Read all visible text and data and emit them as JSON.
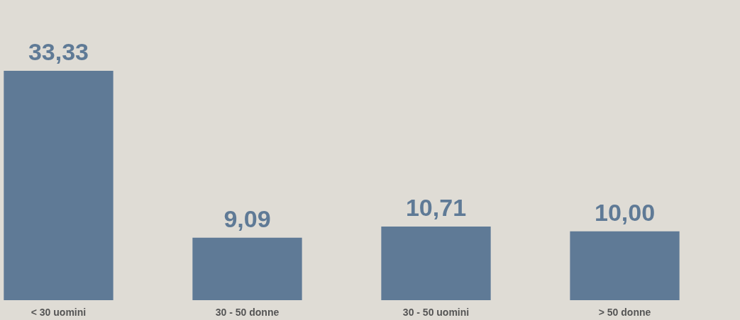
{
  "chart_data": {
    "type": "bar",
    "categories": [
      "< 30 uomini",
      "30 - 50 donne",
      "30 - 50 uomini",
      "> 50 donne"
    ],
    "values": [
      33.33,
      9.09,
      10.71,
      10.0
    ],
    "value_labels": [
      "33,33",
      "9,09",
      "10,71",
      "10,00"
    ],
    "color": "#5f7a96"
  }
}
